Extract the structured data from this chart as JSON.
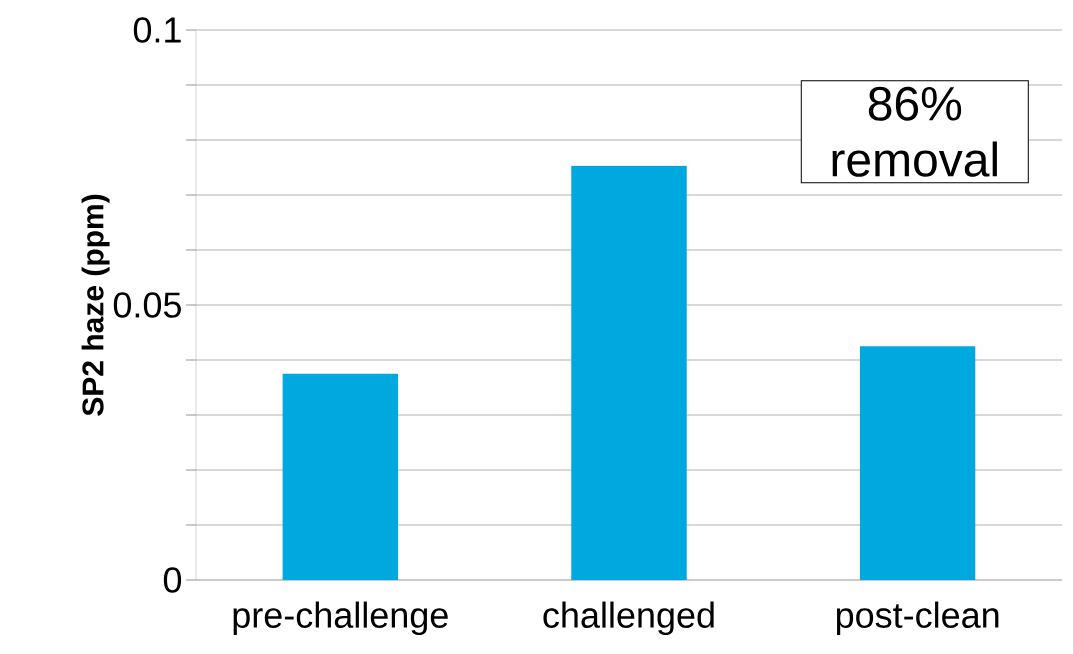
{
  "chart_data": {
    "type": "bar",
    "ylabel": "SP2 haze (ppm)",
    "categories": [
      "pre-challenge",
      "challenged",
      "post-clean"
    ],
    "values": [
      0.0375,
      0.0753,
      0.0425
    ],
    "color": "#00a8e0",
    "ylim": [
      0,
      0.1
    ],
    "yticks": [
      0,
      {
        "value": 0.01,
        "label": null
      },
      {
        "value": 0.02,
        "label": null
      },
      {
        "value": 0.03,
        "label": null
      },
      {
        "value": 0.04,
        "label": null
      },
      0.05,
      {
        "value": 0.06,
        "label": null
      },
      {
        "value": 0.07,
        "label": null
      },
      {
        "value": 0.08,
        "label": null
      },
      {
        "value": 0.09,
        "label": null
      },
      0.1
    ],
    "grid": "y",
    "annotations": [
      "86% removal"
    ]
  }
}
